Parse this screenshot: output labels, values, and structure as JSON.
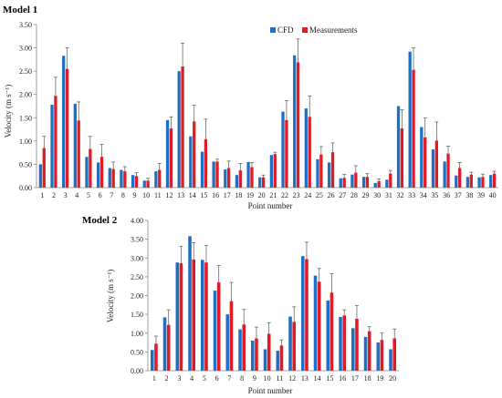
{
  "colors": {
    "cfd": "#1f6fc4",
    "measurements": "#e01b24",
    "error": "#555555",
    "axis": "#888888"
  },
  "chart_data": [
    {
      "type": "bar",
      "title": "Model 1",
      "xlabel": "Point number",
      "ylabel": "Velocity (m s⁻¹)",
      "ylim": [
        0,
        3.5
      ],
      "yticks": [
        "0.00",
        "0.50",
        "1.00",
        "1.50",
        "2.00",
        "2.50",
        "3.00",
        "3.50"
      ],
      "legend": "top-center",
      "categories": [
        "1",
        "2",
        "3",
        "4",
        "5",
        "6",
        "7",
        "8",
        "9",
        "10",
        "11",
        "12",
        "13",
        "14",
        "15",
        "16",
        "17",
        "18",
        "19",
        "20",
        "21",
        "22",
        "23",
        "24",
        "25",
        "26",
        "27",
        "28",
        "29",
        "30",
        "31",
        "32",
        "33",
        "34",
        "35",
        "36",
        "37",
        "38",
        "39",
        "40"
      ],
      "series": [
        {
          "name": "CFD",
          "values": [
            0.5,
            1.78,
            2.83,
            1.8,
            0.66,
            0.54,
            0.42,
            0.38,
            0.27,
            0.15,
            0.35,
            1.45,
            2.5,
            1.1,
            0.77,
            0.56,
            0.39,
            0.27,
            0.55,
            0.22,
            0.7,
            1.63,
            2.84,
            1.7,
            0.61,
            0.54,
            0.2,
            0.28,
            0.23,
            0.1,
            0.17,
            1.75,
            2.92,
            1.3,
            0.82,
            0.56,
            0.26,
            0.23,
            0.22,
            0.27
          ]
        },
        {
          "name": "Measurements",
          "values": [
            0.85,
            1.97,
            2.55,
            1.44,
            0.83,
            0.66,
            0.4,
            0.35,
            0.25,
            0.15,
            0.38,
            1.27,
            2.6,
            1.42,
            1.04,
            0.56,
            0.42,
            0.37,
            0.44,
            0.22,
            0.72,
            1.45,
            2.69,
            1.52,
            0.71,
            0.76,
            0.21,
            0.32,
            0.23,
            0.14,
            0.3,
            1.27,
            2.53,
            1.08,
            1.01,
            0.73,
            0.42,
            0.28,
            0.23,
            0.3
          ]
        }
      ],
      "errors": [
        0.25,
        0.4,
        0.45,
        0.4,
        0.27,
        0.27,
        0.15,
        0.1,
        0.07,
        0.05,
        0.14,
        0.25,
        0.5,
        0.35,
        0.43,
        0.05,
        0.15,
        0.15,
        0.1,
        0.05,
        0.04,
        0.42,
        0.5,
        0.45,
        0.17,
        0.2,
        0.07,
        0.15,
        0.07,
        0.05,
        0.07,
        0.4,
        0.47,
        0.42,
        0.4,
        0.16,
        0.12,
        0.05,
        0.06,
        0.05
      ]
    },
    {
      "type": "bar",
      "title": "Model 2",
      "xlabel": "Point number",
      "ylabel": "Velocity (m s⁻¹)",
      "ylim": [
        0,
        4.0
      ],
      "yticks": [
        "0.00",
        "0.50",
        "1.00",
        "1.50",
        "2.00",
        "2.50",
        "3.00",
        "3.50",
        "4.00"
      ],
      "categories": [
        "1",
        "2",
        "3",
        "4",
        "5",
        "6",
        "7",
        "8",
        "9",
        "10",
        "11",
        "12",
        "13",
        "14",
        "15",
        "16",
        "17",
        "18",
        "19",
        "20"
      ],
      "series": [
        {
          "name": "CFD",
          "values": [
            0.55,
            1.42,
            2.88,
            3.58,
            2.95,
            2.13,
            1.5,
            1.1,
            0.8,
            0.57,
            0.53,
            1.44,
            3.05,
            2.53,
            1.87,
            1.43,
            1.13,
            0.9,
            0.75,
            0.57
          ]
        },
        {
          "name": "Measurements",
          "values": [
            0.72,
            1.22,
            2.86,
            2.96,
            2.88,
            2.35,
            1.85,
            1.23,
            0.86,
            0.98,
            0.67,
            1.3,
            2.97,
            2.37,
            2.08,
            1.47,
            1.38,
            1.05,
            0.82,
            0.86
          ]
        }
      ],
      "errors": [
        0.2,
        0.4,
        0.45,
        0.45,
        0.45,
        0.45,
        0.5,
        0.4,
        0.3,
        0.3,
        0.15,
        0.4,
        0.45,
        0.35,
        0.5,
        0.15,
        0.35,
        0.12,
        0.18,
        0.25
      ]
    }
  ]
}
